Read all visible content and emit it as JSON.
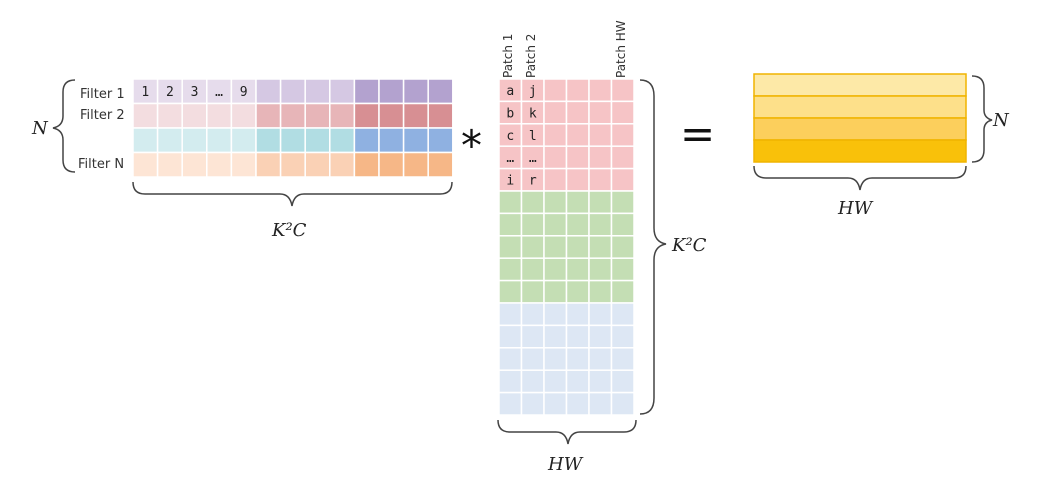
{
  "filter_labels": [
    "Filter 1",
    "Filter 2",
    "Filter N"
  ],
  "filter1_values": [
    "1",
    "2",
    "3",
    "…",
    "9"
  ],
  "patch_labels": [
    "Patch 1",
    "Patch 2",
    "Patch HW"
  ],
  "patch1_values": [
    "a",
    "b",
    "c",
    "…",
    "i"
  ],
  "patch2_values": [
    "j",
    "k",
    "l",
    "…",
    "r"
  ],
  "dims": {
    "n_left": "N",
    "k2c_bottom": "K²C",
    "k2c_right": "K²C",
    "hw_bottom": "HW",
    "n_result": "N",
    "hw_result": "HW"
  },
  "operators": {
    "multiply": "*",
    "equals": "="
  },
  "colors": {
    "filter_rows": [
      [
        "#e6dcec",
        "#d5c8e3",
        "#b3a2cf"
      ],
      [
        "#f3dde0",
        "#e7b5b8",
        "#d78f93"
      ],
      [
        "#d3ecef",
        "#b1dde3",
        "#8fb1e1"
      ],
      [
        "#fde5d5",
        "#fad1b5",
        "#f6b787"
      ]
    ],
    "patch_blocks": [
      "#f6c4c6",
      "#c4deb4",
      "#dde7f4"
    ],
    "result_rows": [
      "#fde9a7",
      "#fde08a",
      "#fccf5c",
      "#f9c10a"
    ],
    "result_border": "#f0b400"
  }
}
